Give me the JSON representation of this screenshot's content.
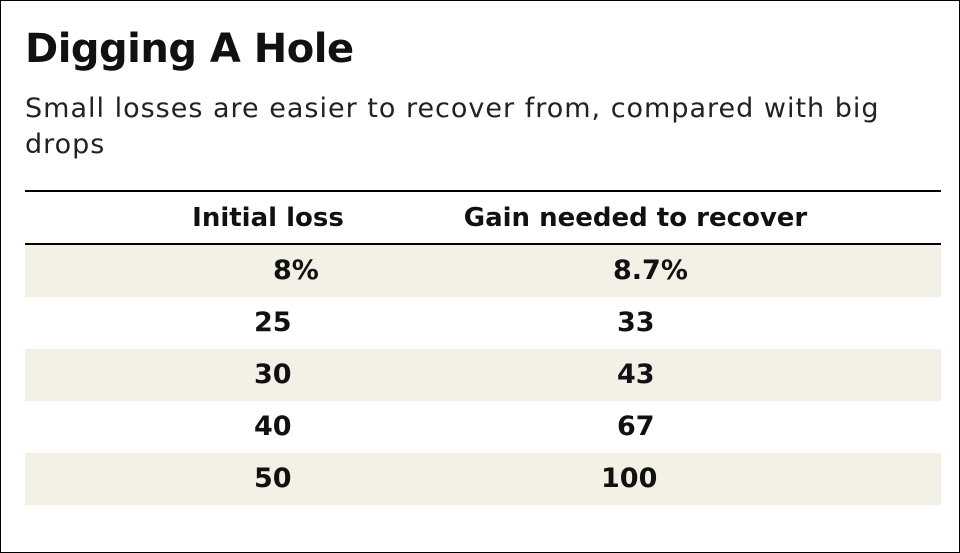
{
  "chart_data": {
    "type": "table",
    "title": "Digging A Hole",
    "subtitle": "Small losses are easier to recover from, compared with big drops",
    "columns": [
      "Initial loss",
      "Gain needed to recover"
    ],
    "rows": [
      [
        "8%",
        "8.7%"
      ],
      [
        "25",
        "33"
      ],
      [
        "30",
        "43"
      ],
      [
        "40",
        "67"
      ],
      [
        "50",
        "100"
      ]
    ],
    "values": [
      {
        "initial_loss_pct": 8,
        "gain_needed_pct": 8.7
      },
      {
        "initial_loss_pct": 25,
        "gain_needed_pct": 33
      },
      {
        "initial_loss_pct": 30,
        "gain_needed_pct": 43
      },
      {
        "initial_loss_pct": 40,
        "gain_needed_pct": 67
      },
      {
        "initial_loss_pct": 50,
        "gain_needed_pct": 100
      }
    ]
  },
  "colors": {
    "stripe": "#f3f0e6",
    "text": "#111111",
    "rule": "#000000"
  }
}
